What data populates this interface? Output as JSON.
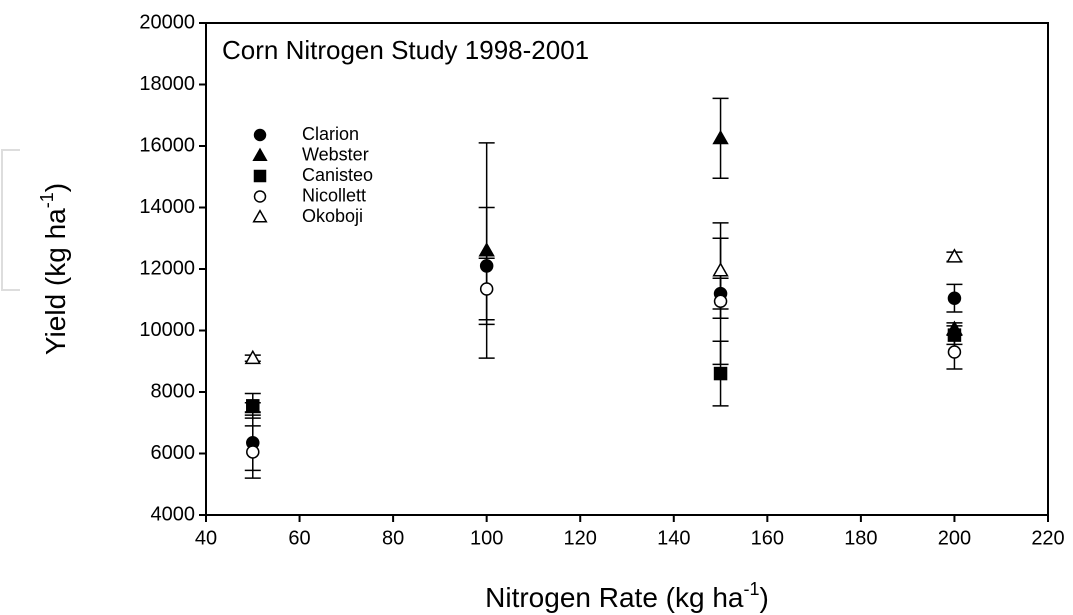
{
  "chart_data": {
    "type": "scatter",
    "title": "Corn Nitrogen Study 1998-2001",
    "xlabel": [
      "Nitrogen Rate (kg ha",
      "-1",
      ")"
    ],
    "ylabel": [
      "Yield (kg ha",
      "-1",
      ")"
    ],
    "xlim": [
      40,
      220
    ],
    "xticks": [
      40,
      60,
      80,
      100,
      120,
      140,
      160,
      180,
      200,
      220
    ],
    "ylim": [
      4000,
      20000
    ],
    "yticks": [
      4000,
      6000,
      8000,
      10000,
      12000,
      14000,
      16000,
      18000,
      20000
    ],
    "legend": "upper left",
    "x": [
      50,
      100,
      150,
      200
    ],
    "series": [
      {
        "name": "Clarion",
        "color": "#000000",
        "marker": "circle",
        "filled": true,
        "values": [
          6350,
          12100,
          11200,
          11050
        ],
        "errors": [
          900,
          1900,
          500,
          450
        ]
      },
      {
        "name": "Webster",
        "color": "#000000",
        "marker": "triangle",
        "filled": true,
        "values": [
          7500,
          12600,
          16250,
          10050
        ],
        "errors": [
          150,
          3500,
          1300,
          200
        ]
      },
      {
        "name": "Canisteo",
        "color": "#000000",
        "marker": "square",
        "filled": true,
        "values": [
          7550,
          null,
          8600,
          9850
        ],
        "errors": [
          400,
          null,
          1050,
          300
        ]
      },
      {
        "name": "Nicollett",
        "color": "#000000",
        "marker": "circle",
        "filled": false,
        "values": [
          6050,
          11350,
          10950,
          9300
        ],
        "errors": [
          850,
          1000,
          2050,
          550
        ]
      },
      {
        "name": "Okoboji",
        "color": "#000000",
        "marker": "triangle",
        "filled": false,
        "values": [
          9100,
          null,
          11950,
          12400
        ],
        "errors": [
          100,
          null,
          1550,
          150
        ]
      }
    ]
  }
}
